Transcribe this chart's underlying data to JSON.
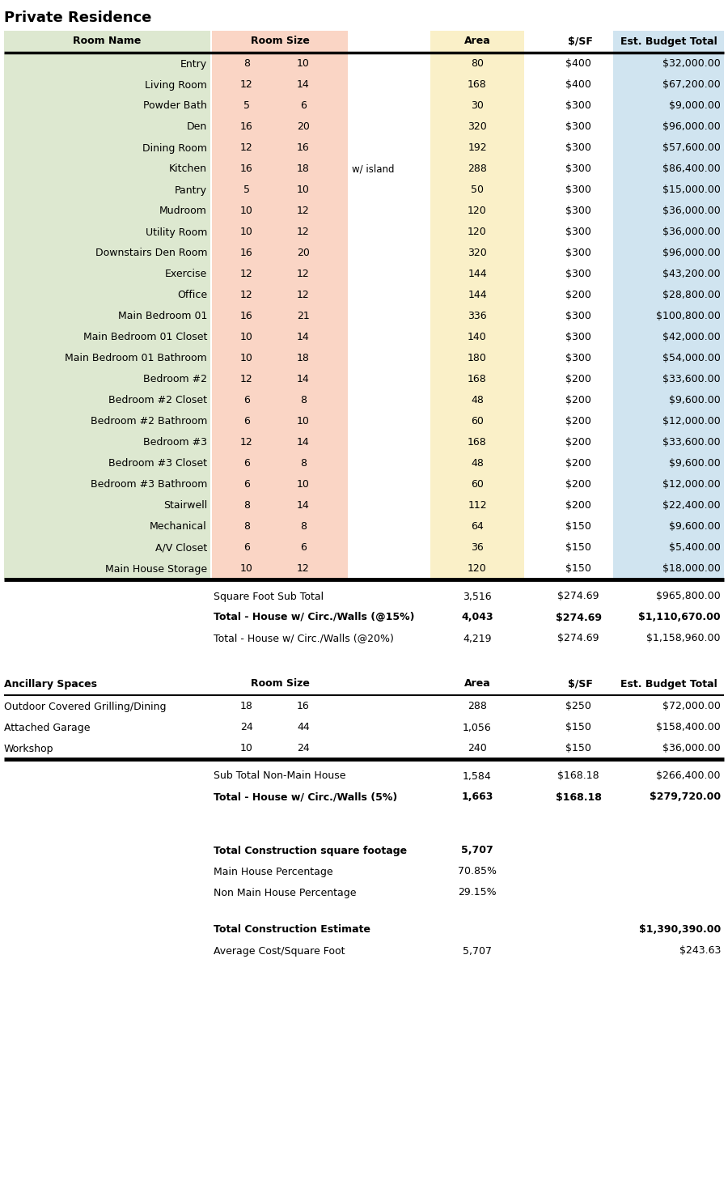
{
  "title": "Private Residence",
  "bg_color": "#ffffff",
  "col_green": "#dde8d0",
  "col_pink": "#fad5c5",
  "col_yellow": "#faf0c8",
  "col_blue": "#d0e4f0",
  "main_rooms": [
    {
      "name": "Entry",
      "w": "8",
      "h": "10",
      "note": "",
      "area": "80",
      "psf": "$400",
      "budget": "$32,000.00"
    },
    {
      "name": "Living Room",
      "w": "12",
      "h": "14",
      "note": "",
      "area": "168",
      "psf": "$400",
      "budget": "$67,200.00"
    },
    {
      "name": "Powder Bath",
      "w": "5",
      "h": "6",
      "note": "",
      "area": "30",
      "psf": "$300",
      "budget": "$9,000.00"
    },
    {
      "name": "Den",
      "w": "16",
      "h": "20",
      "note": "",
      "area": "320",
      "psf": "$300",
      "budget": "$96,000.00"
    },
    {
      "name": "Dining Room",
      "w": "12",
      "h": "16",
      "note": "",
      "area": "192",
      "psf": "$300",
      "budget": "$57,600.00"
    },
    {
      "name": "Kitchen",
      "w": "16",
      "h": "18",
      "note": "w/ island",
      "area": "288",
      "psf": "$300",
      "budget": "$86,400.00"
    },
    {
      "name": "Pantry",
      "w": "5",
      "h": "10",
      "note": "",
      "area": "50",
      "psf": "$300",
      "budget": "$15,000.00"
    },
    {
      "name": "Mudroom",
      "w": "10",
      "h": "12",
      "note": "",
      "area": "120",
      "psf": "$300",
      "budget": "$36,000.00"
    },
    {
      "name": "Utility Room",
      "w": "10",
      "h": "12",
      "note": "",
      "area": "120",
      "psf": "$300",
      "budget": "$36,000.00"
    },
    {
      "name": "Downstairs Den Room",
      "w": "16",
      "h": "20",
      "note": "",
      "area": "320",
      "psf": "$300",
      "budget": "$96,000.00"
    },
    {
      "name": "Exercise",
      "w": "12",
      "h": "12",
      "note": "",
      "area": "144",
      "psf": "$300",
      "budget": "$43,200.00"
    },
    {
      "name": "Office",
      "w": "12",
      "h": "12",
      "note": "",
      "area": "144",
      "psf": "$200",
      "budget": "$28,800.00"
    },
    {
      "name": "Main Bedroom 01",
      "w": "16",
      "h": "21",
      "note": "",
      "area": "336",
      "psf": "$300",
      "budget": "$100,800.00"
    },
    {
      "name": "Main Bedroom 01 Closet",
      "w": "10",
      "h": "14",
      "note": "",
      "area": "140",
      "psf": "$300",
      "budget": "$42,000.00"
    },
    {
      "name": "Main Bedroom 01 Bathroom",
      "w": "10",
      "h": "18",
      "note": "",
      "area": "180",
      "psf": "$300",
      "budget": "$54,000.00"
    },
    {
      "name": "Bedroom #2",
      "w": "12",
      "h": "14",
      "note": "",
      "area": "168",
      "psf": "$200",
      "budget": "$33,600.00"
    },
    {
      "name": "Bedroom #2 Closet",
      "w": "6",
      "h": "8",
      "note": "",
      "area": "48",
      "psf": "$200",
      "budget": "$9,600.00"
    },
    {
      "name": "Bedroom #2 Bathroom",
      "w": "6",
      "h": "10",
      "note": "",
      "area": "60",
      "psf": "$200",
      "budget": "$12,000.00"
    },
    {
      "name": "Bedroom #3",
      "w": "12",
      "h": "14",
      "note": "",
      "area": "168",
      "psf": "$200",
      "budget": "$33,600.00"
    },
    {
      "name": "Bedroom #3 Closet",
      "w": "6",
      "h": "8",
      "note": "",
      "area": "48",
      "psf": "$200",
      "budget": "$9,600.00"
    },
    {
      "name": "Bedroom #3 Bathroom",
      "w": "6",
      "h": "10",
      "note": "",
      "area": "60",
      "psf": "$200",
      "budget": "$12,000.00"
    },
    {
      "name": "Stairwell",
      "w": "8",
      "h": "14",
      "note": "",
      "area": "112",
      "psf": "$200",
      "budget": "$22,400.00"
    },
    {
      "name": "Mechanical",
      "w": "8",
      "h": "8",
      "note": "",
      "area": "64",
      "psf": "$150",
      "budget": "$9,600.00"
    },
    {
      "name": "A/V Closet",
      "w": "6",
      "h": "6",
      "note": "",
      "area": "36",
      "psf": "$150",
      "budget": "$5,400.00"
    },
    {
      "name": "Main House Storage",
      "w": "10",
      "h": "12",
      "note": "",
      "area": "120",
      "psf": "$150",
      "budget": "$18,000.00"
    }
  ],
  "main_subtotals": [
    {
      "label": "Square Foot Sub Total",
      "bold": false,
      "area": "3,516",
      "psf": "$274.69",
      "budget": "$965,800.00"
    },
    {
      "label": "Total - House w/ Circ./Walls (@15%)",
      "bold": true,
      "area": "4,043",
      "psf": "$274.69",
      "budget": "$1,110,670.00"
    },
    {
      "label": "Total - House w/ Circ./Walls (@20%)",
      "bold": false,
      "area": "4,219",
      "psf": "$274.69",
      "budget": "$1,158,960.00"
    }
  ],
  "ancillary_rooms": [
    {
      "name": "Outdoor Covered Grilling/Dining",
      "w": "18",
      "h": "16",
      "area": "288",
      "psf": "$250",
      "budget": "$72,000.00"
    },
    {
      "name": "Attached Garage",
      "w": "24",
      "h": "44",
      "area": "1,056",
      "psf": "$150",
      "budget": "$158,400.00"
    },
    {
      "name": "Workshop",
      "w": "10",
      "h": "24",
      "area": "240",
      "psf": "$150",
      "budget": "$36,000.00"
    }
  ],
  "ancillary_subtotals": [
    {
      "label": "Sub Total Non-Main House",
      "bold": false,
      "area": "1,584",
      "psf": "$168.18",
      "budget": "$266,400.00"
    },
    {
      "label": "Total - House w/ Circ./Walls (5%)",
      "bold": true,
      "area": "1,663",
      "psf": "$168.18",
      "budget": "$279,720.00"
    }
  ],
  "final_section": [
    {
      "label": "Total Construction square footage",
      "bold": true,
      "val1": "5,707",
      "val2": ""
    },
    {
      "label": "Main House Percentage",
      "bold": false,
      "val1": "70.85%",
      "val2": ""
    },
    {
      "label": "Non Main House Percentage",
      "bold": false,
      "val1": "29.15%",
      "val2": ""
    },
    {
      "label": "Total Construction Estimate",
      "bold": true,
      "val1": "",
      "val2": "$1,390,390.00"
    },
    {
      "label": "Average Cost/Square Foot",
      "bold": false,
      "val1": "5,707",
      "val2": "$243.63"
    }
  ]
}
